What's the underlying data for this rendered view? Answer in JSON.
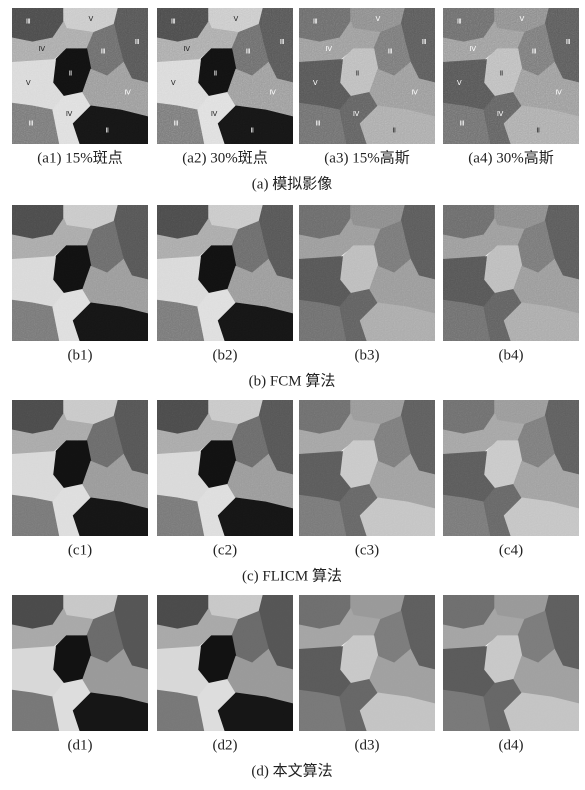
{
  "rows": [
    {
      "caption": "(a)  模拟影像",
      "images": [
        {
          "caption": "(a1) 15%斑点"
        },
        {
          "caption": "(a2) 30%斑点"
        },
        {
          "caption": "(a3) 15%高斯"
        },
        {
          "caption": "(a4) 30%高斯"
        }
      ]
    },
    {
      "caption": "(b)  FCM 算法",
      "images": [
        {
          "caption": "(b1)"
        },
        {
          "caption": "(b2)"
        },
        {
          "caption": "(b3)"
        },
        {
          "caption": "(b4)"
        }
      ]
    },
    {
      "caption": "(c)  FLICM 算法",
      "images": [
        {
          "caption": "(c1)"
        },
        {
          "caption": "(c2)"
        },
        {
          "caption": "(c3)"
        },
        {
          "caption": "(c4)"
        }
      ]
    },
    {
      "caption": "(d)  本文算法",
      "images": [
        {
          "caption": "(d1)"
        },
        {
          "caption": "(d2)"
        },
        {
          "caption": "(d3)"
        },
        {
          "caption": "(d4)"
        }
      ]
    }
  ],
  "region_labels": [
    "Ⅲ",
    "Ⅴ",
    "Ⅲ",
    "Ⅳ",
    "Ⅲ",
    "Ⅱ",
    "Ⅴ",
    "Ⅲ",
    "Ⅳ",
    "Ⅳ",
    "Ⅱ"
  ]
}
